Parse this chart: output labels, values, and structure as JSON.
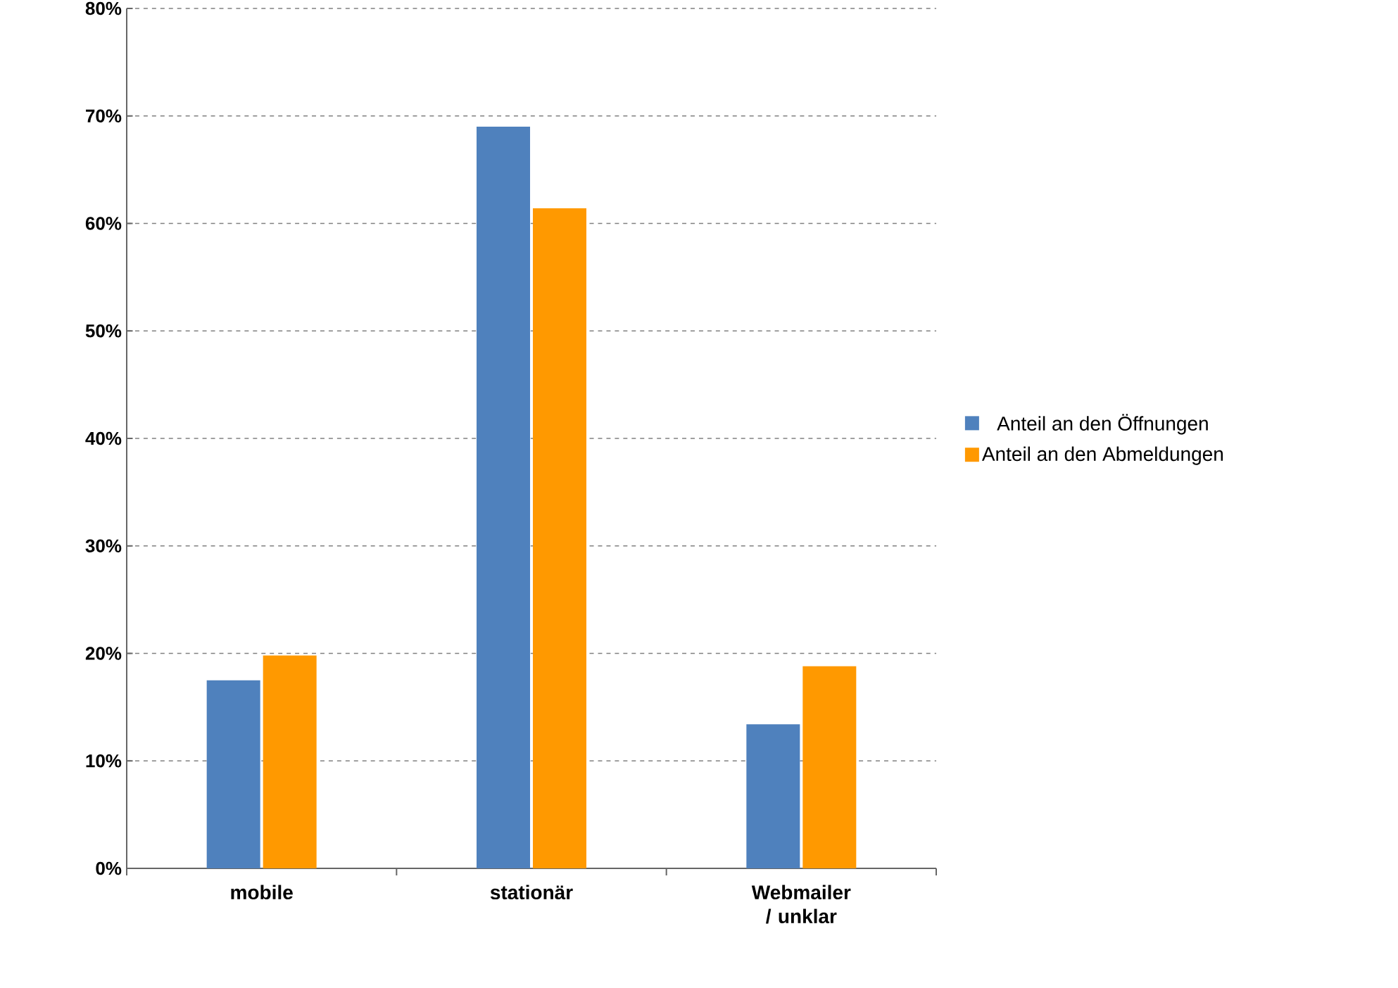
{
  "chart_data": {
    "type": "bar",
    "categories": [
      "mobile",
      "stationär",
      "Webmailer / unklar"
    ],
    "series": [
      {
        "name": "Anteil an den Öffnungen",
        "color": "#4f81bd",
        "values": [
          17.5,
          69.0,
          13.4
        ]
      },
      {
        "name": "Anteil an den Abmeldungen",
        "color": "#ff9900",
        "values": [
          19.8,
          61.4,
          18.8
        ]
      }
    ],
    "ylim": [
      0,
      80
    ],
    "yticks": [
      {
        "value": 0,
        "label": "0%"
      },
      {
        "value": 10,
        "label": "10%"
      },
      {
        "value": 20,
        "label": "20%"
      },
      {
        "value": 30,
        "label": "30%"
      },
      {
        "value": 40,
        "label": "40%"
      },
      {
        "value": 50,
        "label": "50%"
      },
      {
        "value": 60,
        "label": "60%"
      },
      {
        "value": 70,
        "label": "70%"
      },
      {
        "value": 80,
        "label": "80%"
      }
    ],
    "grid": "y",
    "legend": "right"
  }
}
